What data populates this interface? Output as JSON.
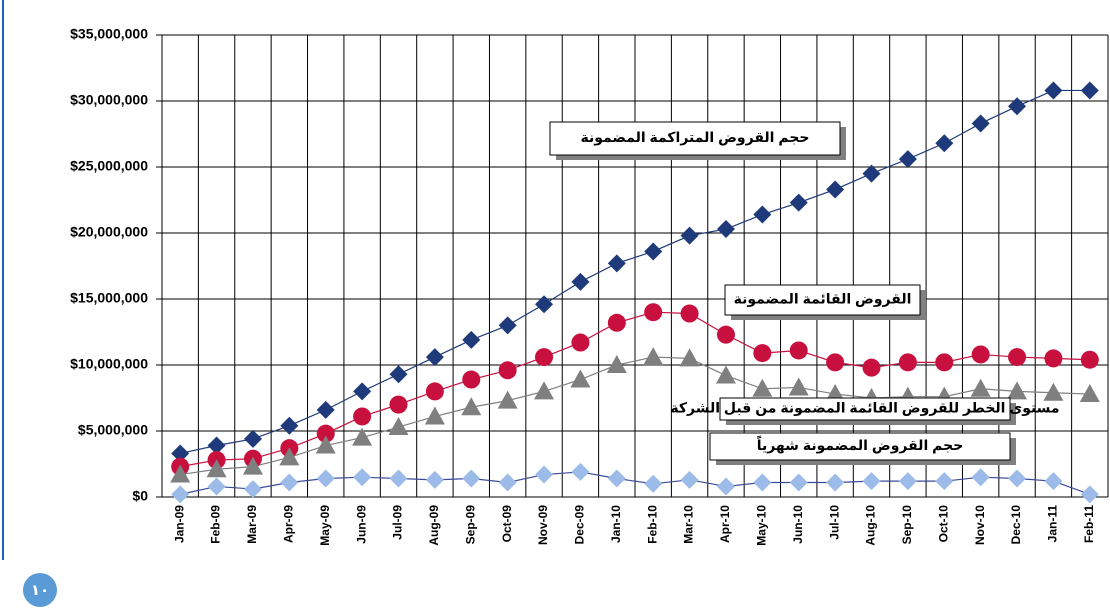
{
  "chart_data": {
    "type": "line",
    "categories": [
      "Jan-09",
      "Feb-09",
      "Mar-09",
      "Apr-09",
      "May-09",
      "Jun-09",
      "Jul-09",
      "Aug-09",
      "Sep-09",
      "Oct-09",
      "Nov-09",
      "Dec-09",
      "Jan-10",
      "Feb-10",
      "Mar-10",
      "Apr-10",
      "May-10",
      "Jun-10",
      "Jul-10",
      "Aug-10",
      "Sep-10",
      "Oct-10",
      "Nov-10",
      "Dec-10",
      "Jan-11",
      "Feb-11"
    ],
    "series": [
      {
        "name": "حجم القروض المتراكمة المضمونة",
        "color": "#1f3a7a",
        "marker": "diamond",
        "values": [
          3300000,
          3900000,
          4400000,
          5400000,
          6600000,
          8000000,
          9300000,
          10600000,
          11900000,
          13000000,
          14600000,
          16300000,
          17700000,
          18600000,
          19800000,
          20300000,
          21400000,
          22300000,
          23300000,
          24500000,
          25600000,
          26800000,
          28300000,
          29600000,
          30800000,
          30800000
        ]
      },
      {
        "name": "القروض القائمة المضمونة",
        "color": "#c8103e",
        "marker": "circle",
        "values": [
          2300000,
          2800000,
          2900000,
          3700000,
          4800000,
          6100000,
          7000000,
          8000000,
          8900000,
          9600000,
          10600000,
          11700000,
          13200000,
          14000000,
          13900000,
          12300000,
          10900000,
          11100000,
          10200000,
          9800000,
          10200000,
          10200000,
          10800000,
          10600000,
          10500000,
          10400000
        ]
      },
      {
        "name": "مستوى الخطر للقروض القائمة المضمونة من قبل الشركة",
        "color": "#7f7f7f",
        "marker": "triangle",
        "values": [
          1700000,
          2100000,
          2300000,
          3000000,
          3900000,
          4500000,
          5300000,
          6100000,
          6800000,
          7300000,
          8000000,
          8900000,
          10000000,
          10600000,
          10500000,
          9200000,
          8200000,
          8300000,
          7800000,
          7500000,
          7600000,
          7600000,
          8200000,
          8000000,
          7900000,
          7800000
        ]
      },
      {
        "name": "حجم القروض المضمونة شهرياً",
        "color": "#9dbbe8",
        "line_color": "#3a4a9a",
        "marker": "diamond",
        "values": [
          200000,
          800000,
          600000,
          1100000,
          1400000,
          1500000,
          1400000,
          1300000,
          1400000,
          1100000,
          1700000,
          1900000,
          1400000,
          1000000,
          1300000,
          800000,
          1100000,
          1100000,
          1100000,
          1200000,
          1200000,
          1200000,
          1500000,
          1400000,
          1200000,
          200000
        ]
      }
    ],
    "ylim": [
      0,
      35000000
    ],
    "yticks": [
      {
        "value": 0,
        "label": "$0"
      },
      {
        "value": 5000000,
        "label": "$5,000,000"
      },
      {
        "value": 10000000,
        "label": "$10,000,000"
      },
      {
        "value": 15000000,
        "label": "$15,000,000"
      },
      {
        "value": 20000000,
        "label": "$20,000,000"
      },
      {
        "value": 25000000,
        "label": "$25,000,000"
      },
      {
        "value": 30000000,
        "label": "$30,000,000"
      },
      {
        "value": 35000000,
        "label": "$35,000,000"
      }
    ],
    "grid": true,
    "page_number": "١٠"
  }
}
